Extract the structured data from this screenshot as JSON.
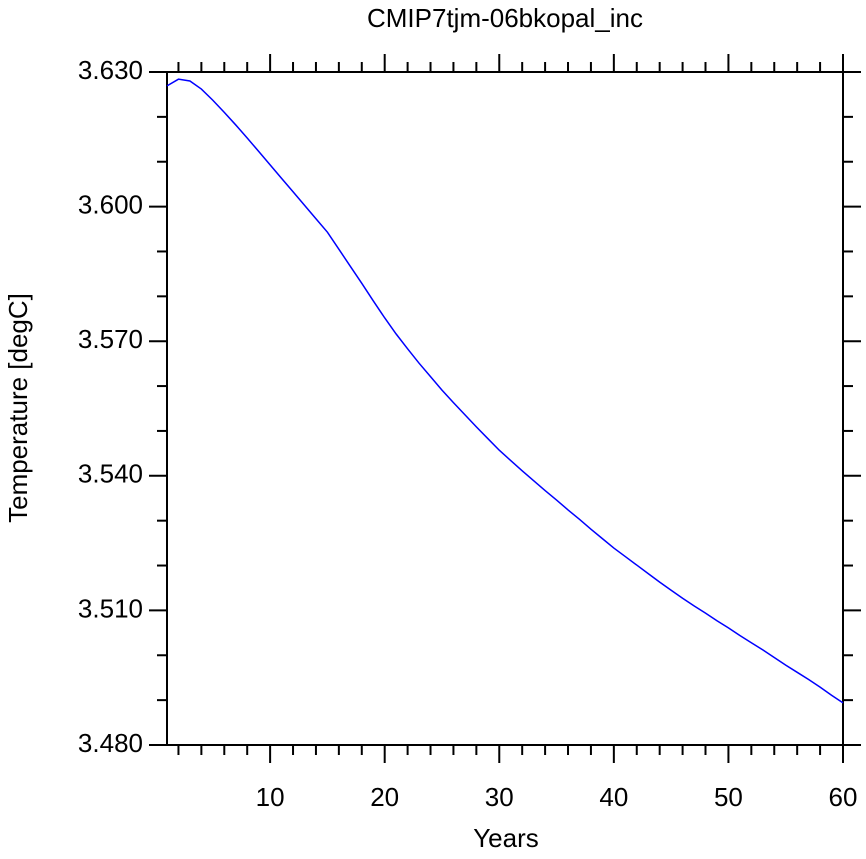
{
  "chart_data": {
    "type": "line",
    "title": "CMIP7tjm-06bkopal_inc",
    "x_label": "Years",
    "y_label": "Temperature [degC]",
    "x": [
      1,
      2,
      3,
      4,
      5,
      6,
      7,
      8,
      9,
      10,
      11,
      12,
      13,
      14,
      15,
      16,
      17,
      18,
      19,
      20,
      21,
      22,
      23,
      24,
      25,
      26,
      27,
      28,
      29,
      30,
      31,
      32,
      33,
      34,
      35,
      36,
      37,
      38,
      39,
      40,
      41,
      42,
      43,
      44,
      45,
      46,
      47,
      48,
      49,
      50,
      51,
      52,
      53,
      54,
      55,
      56,
      57,
      58,
      59,
      60
    ],
    "series": [
      {
        "name": "Temperature",
        "color": "#0000ff",
        "values": [
          3.6269,
          3.6284,
          3.628,
          3.6262,
          3.6237,
          3.621,
          3.6182,
          3.6153,
          3.6123,
          3.6093,
          3.6063,
          3.6033,
          3.6003,
          3.5973,
          3.5943,
          3.5905,
          3.5867,
          3.5829,
          3.579,
          3.5752,
          3.5716,
          3.5683,
          3.5651,
          3.5621,
          3.5591,
          3.5563,
          3.5536,
          3.5509,
          3.5483,
          3.5457,
          3.5434,
          3.5411,
          3.5389,
          3.5367,
          3.5346,
          3.5324,
          3.5303,
          3.5281,
          3.526,
          3.5239,
          3.522,
          3.5201,
          3.5182,
          3.5163,
          3.5145,
          3.5127,
          3.511,
          3.5094,
          3.5077,
          3.5061,
          3.5044,
          3.5028,
          3.5012,
          3.4995,
          3.4978,
          3.4962,
          3.4946,
          3.4929,
          3.4911,
          3.4894
        ]
      }
    ],
    "xlim": [
      1,
      60
    ],
    "xticks": [
      10,
      20,
      30,
      40,
      50,
      60
    ],
    "xminorticks": [
      2,
      4,
      6,
      8,
      12,
      14,
      16,
      18,
      22,
      24,
      26,
      28,
      32,
      34,
      36,
      38,
      42,
      44,
      46,
      48,
      52,
      54,
      56,
      58
    ],
    "ylim": [
      3.48,
      3.63
    ],
    "yticks": [
      {
        "value": 3.48,
        "label": "3.480"
      },
      {
        "value": 3.51,
        "label": "3.510"
      },
      {
        "value": 3.54,
        "label": "3.540"
      },
      {
        "value": 3.57,
        "label": "3.570"
      },
      {
        "value": 3.6,
        "label": "3.600"
      },
      {
        "value": 3.63,
        "label": "3.630"
      }
    ],
    "yminorticks": [
      3.49,
      3.5,
      3.52,
      3.53,
      3.55,
      3.56,
      3.58,
      3.59,
      3.61,
      3.62
    ],
    "grid": false
  }
}
